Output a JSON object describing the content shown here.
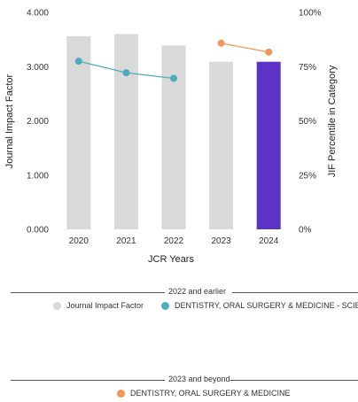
{
  "chart_data": {
    "type": "bar",
    "categories": [
      "2020",
      "2021",
      "2022",
      "2023",
      "2024"
    ],
    "xlabel": "JCR Years",
    "ylabel": "Journal Impact Factor",
    "y2label": "JIF Percentile in Category",
    "ylim": [
      0,
      4
    ],
    "y2lim": [
      0,
      100
    ],
    "yticks": [
      "0.000",
      "1.000",
      "2.000",
      "3.000",
      "4.000"
    ],
    "y2ticks": [
      "0%",
      "25%",
      "50%",
      "75%",
      "100%"
    ],
    "series": [
      {
        "name": "Journal Impact Factor",
        "type": "bar",
        "axis": "left",
        "values": [
          3.56,
          3.6,
          3.39,
          3.09,
          3.09
        ],
        "colors": [
          "#d9d9d9",
          "#d9d9d9",
          "#d9d9d9",
          "#d9d9d9",
          "#5b34c7"
        ]
      },
      {
        "name": "DENTISTRY, ORAL SURGERY & MEDICINE - SCIE",
        "type": "line",
        "axis": "right",
        "color": "#4badc0",
        "values": [
          77.5,
          72.2,
          69.6,
          null,
          null
        ]
      },
      {
        "name": "DENTISTRY, ORAL SURGERY & MEDICINE",
        "type": "line",
        "axis": "right",
        "color": "#f2955a",
        "values": [
          null,
          null,
          null,
          85.8,
          81.7
        ]
      }
    ],
    "grid": false
  },
  "legend": {
    "group1_title": "2022 and earlier",
    "group1_items": [
      {
        "label": "Journal Impact Factor",
        "color": "#d9d9d9"
      },
      {
        "label": "DENTISTRY, ORAL SURGERY & MEDICINE - SCIE",
        "color": "#4badc0"
      }
    ],
    "group2_title": "2023 and beyond",
    "group2_items": [
      {
        "label": "DENTISTRY, ORAL SURGERY & MEDICINE",
        "color": "#f2955a"
      }
    ]
  }
}
